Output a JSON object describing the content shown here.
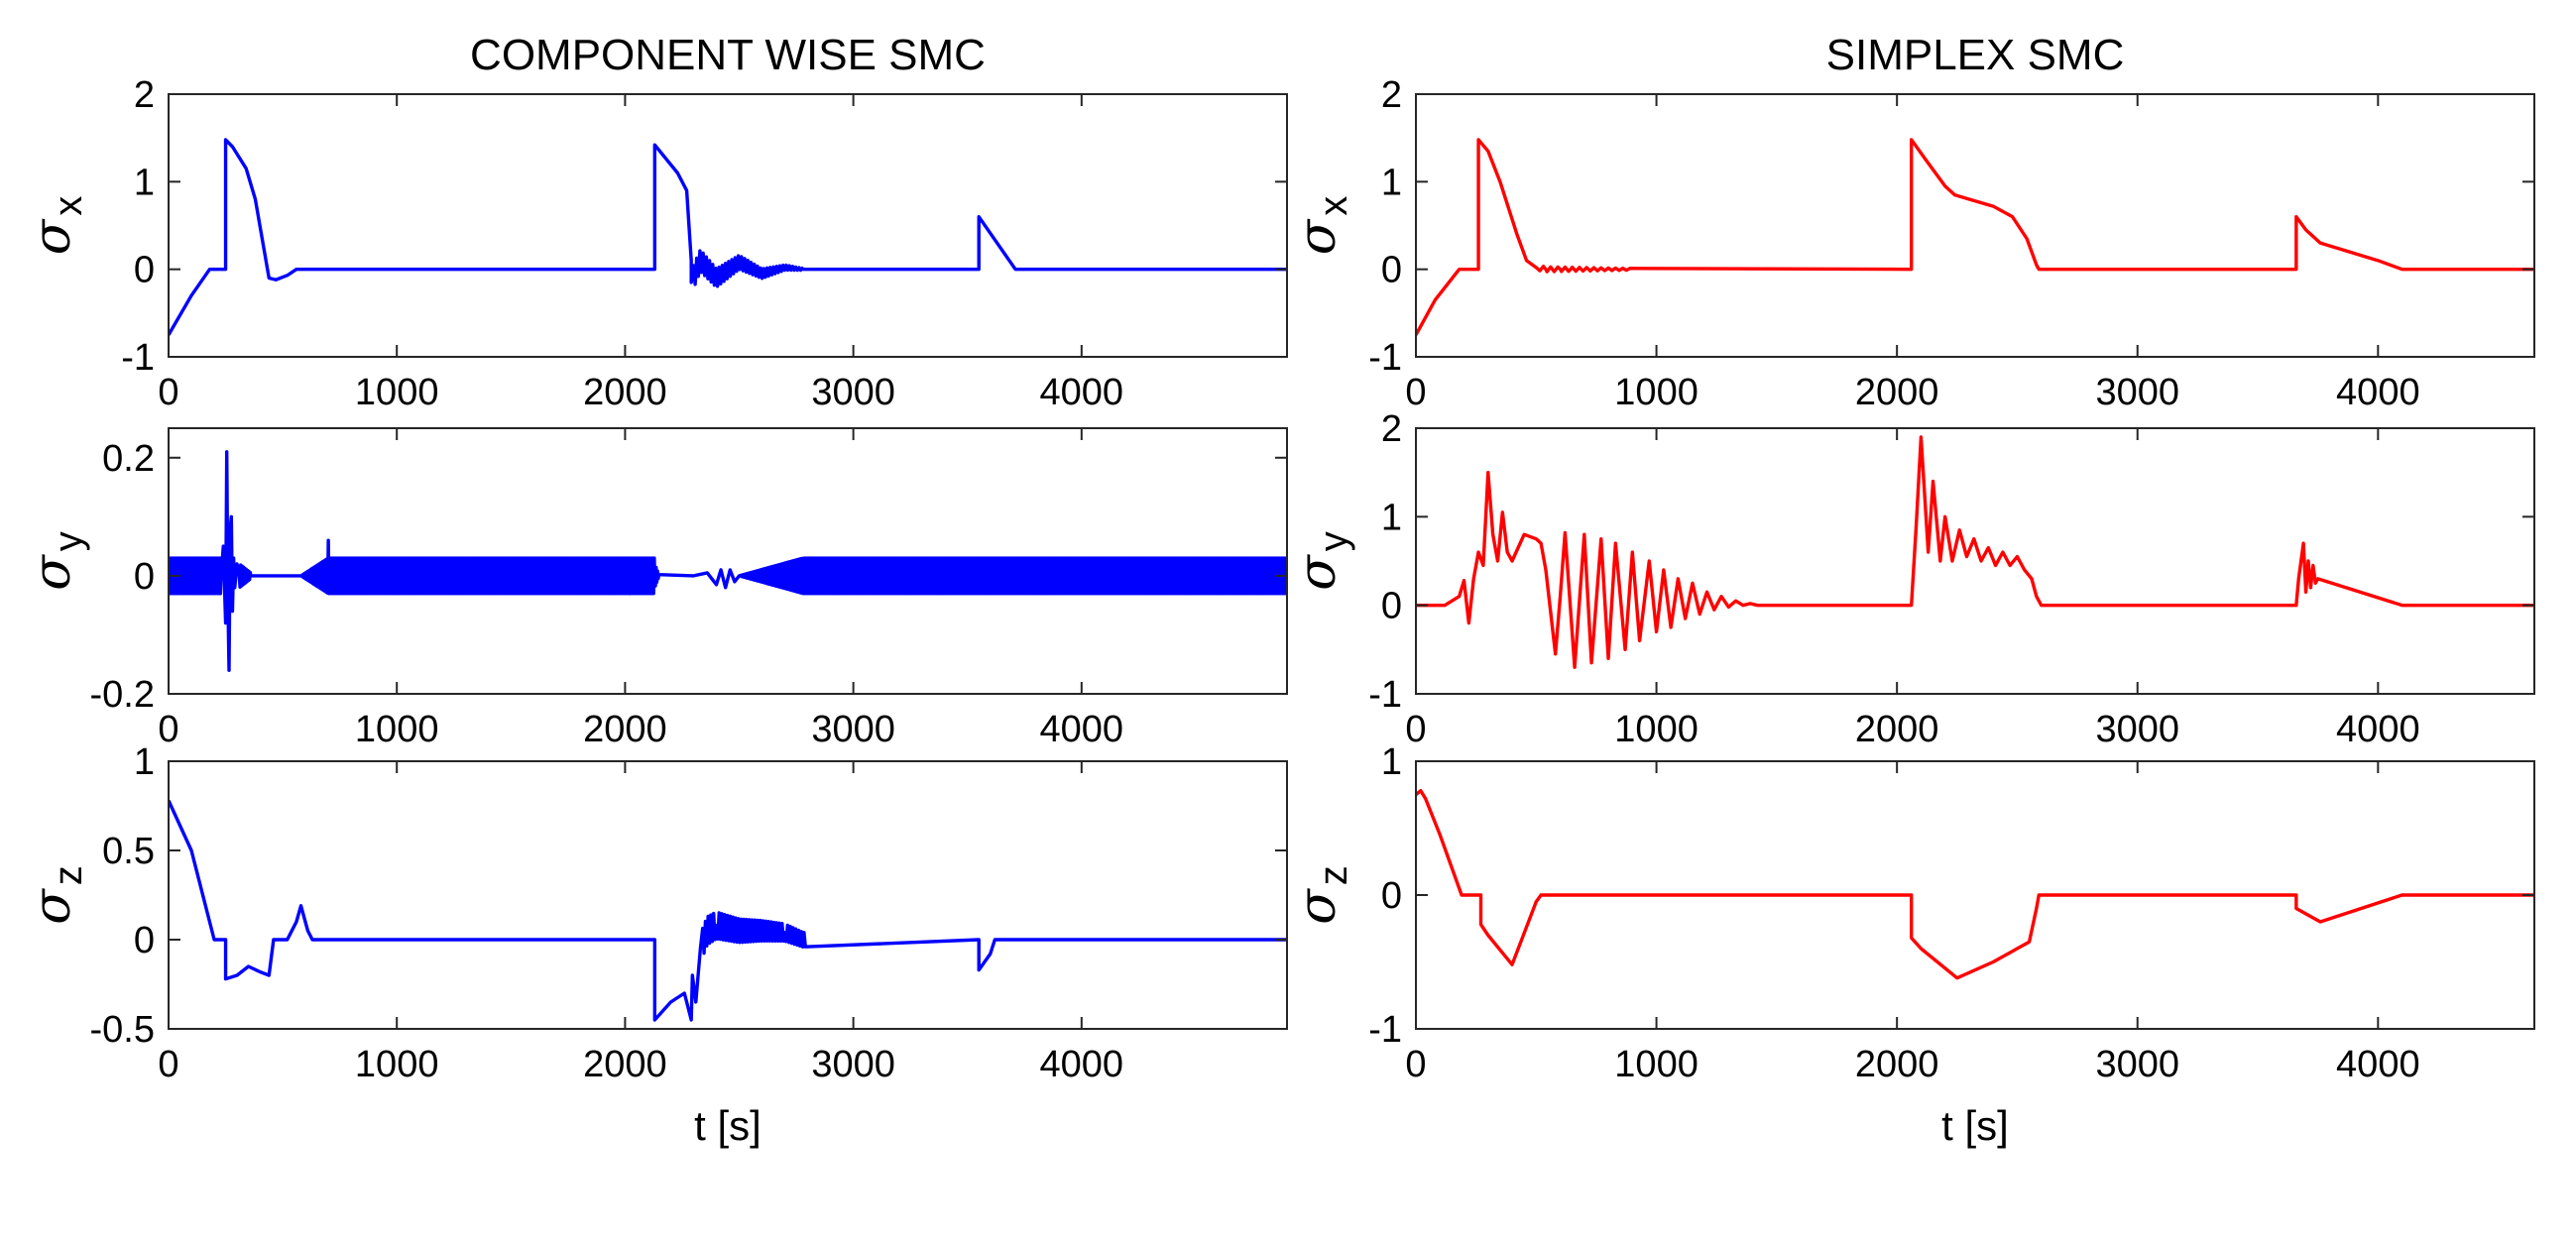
{
  "chart_data": [
    {
      "id": "cw-x",
      "type": "line",
      "column": "left",
      "title": "COMPONENT WISE SMC",
      "ylabel": {
        "symbol": "σ",
        "sub": "x"
      },
      "xlabel": "",
      "xlim": [
        0,
        4900
      ],
      "ylim": [
        -1,
        2
      ],
      "xticks": [
        0,
        1000,
        2000,
        3000,
        4000
      ],
      "yticks": [
        -1,
        0,
        1,
        2
      ],
      "color": "#0000ff",
      "series": [
        {
          "x": [
            0,
            100,
            180,
            250,
            250,
            280,
            340,
            380,
            420,
            440,
            470,
            520,
            560,
            580,
            2130,
            2130,
            2230,
            2270,
            2290,
            2290,
            2330,
            2400,
            2500,
            2600,
            2700,
            2780,
            3550,
            3550,
            3710,
            4900
          ],
          "y": [
            -0.75,
            -0.3,
            0,
            0,
            1.48,
            1.4,
            1.15,
            0.8,
            0.2,
            -0.1,
            -0.12,
            -0.07,
            0,
            0,
            0,
            1.42,
            1.1,
            0.9,
            0.1,
            -0.15,
            0.1,
            -0.1,
            0.08,
            -0.05,
            0.02,
            0,
            0,
            0.6,
            0,
            0
          ]
        }
      ],
      "noise": [
        {
          "x0": 2300,
          "x1": 2780,
          "amp0": 0.13,
          "amp1": 0.01,
          "period": 14
        }
      ]
    },
    {
      "id": "sx-x",
      "type": "line",
      "column": "right",
      "title": "SIMPLEX SMC",
      "ylabel": {
        "symbol": "σ",
        "sub": "x"
      },
      "xlabel": "",
      "xlim": [
        0,
        4650
      ],
      "ylim": [
        -1,
        2
      ],
      "xticks": [
        0,
        1000,
        2000,
        3000,
        4000
      ],
      "yticks": [
        -1,
        0,
        1,
        2
      ],
      "color": "#ff0000",
      "series": [
        {
          "x": [
            0,
            80,
            180,
            260,
            260,
            300,
            350,
            420,
            460,
            500,
            540,
            600,
            2060,
            2060,
            2120,
            2200,
            2240,
            2300,
            2400,
            2480,
            2540,
            2580,
            2590,
            2650,
            2800,
            3660,
            3660,
            3700,
            3760,
            4000,
            4100,
            4650
          ],
          "y": [
            -0.75,
            -0.35,
            0,
            0,
            1.48,
            1.35,
            1.0,
            0.4,
            0.1,
            0.02,
            0,
            0,
            0,
            1.48,
            1.25,
            0.95,
            0.85,
            0.8,
            0.72,
            0.6,
            0.35,
            0.05,
            0,
            0,
            0,
            0,
            0.6,
            0.45,
            0.3,
            0.1,
            0,
            0
          ]
        }
      ],
      "noise": [
        {
          "x0": 500,
          "x1": 900,
          "amp0": 0.03,
          "amp1": 0.01,
          "period": 30
        }
      ]
    },
    {
      "id": "cw-y",
      "type": "line",
      "column": "left",
      "title": "",
      "ylabel": {
        "symbol": "σ",
        "sub": "y"
      },
      "xlabel": "",
      "xlim": [
        0,
        4900
      ],
      "ylim": [
        -0.2,
        0.25
      ],
      "xticks": [
        0,
        1000,
        2000,
        3000,
        4000
      ],
      "yticks": [
        -0.2,
        0,
        0.2
      ],
      "color": "#0000ff",
      "series": [
        {
          "x": [
            0,
            230,
            240,
            250,
            255,
            260,
            265,
            270,
            275,
            280,
            285,
            290,
            300,
            310,
            330,
            360,
            580,
            2130,
            2300,
            2360,
            2400,
            2420,
            2440,
            2460,
            2480,
            2500,
            4900
          ],
          "y": [
            0,
            0,
            0.05,
            -0.08,
            0.21,
            -0.04,
            -0.16,
            0.08,
            0.1,
            -0.06,
            0.03,
            -0.02,
            0.02,
            0,
            0,
            0,
            0,
            0,
            0,
            0.005,
            -0.015,
            0.01,
            -0.02,
            0.01,
            -0.01,
            0,
            0
          ]
        }
      ],
      "noise": [
        {
          "x0": 0,
          "x1": 230,
          "amp0": 0.03,
          "amp1": 0.03,
          "period": 5
        },
        {
          "x0": 310,
          "x1": 360,
          "amp0": 0.02,
          "amp1": 0.005,
          "period": 6
        },
        {
          "x0": 580,
          "x1": 700,
          "amp0": 0.0,
          "amp1": 0.03,
          "period": 6
        },
        {
          "x0": 700,
          "x1": 2130,
          "amp0": 0.03,
          "amp1": 0.03,
          "period": 6
        },
        {
          "x0": 2130,
          "x1": 2150,
          "amp0": 0.02,
          "amp1": 0.0,
          "period": 6
        },
        {
          "x0": 2500,
          "x1": 2780,
          "amp0": 0.0,
          "amp1": 0.03,
          "period": 6
        },
        {
          "x0": 2780,
          "x1": 4900,
          "amp0": 0.03,
          "amp1": 0.03,
          "period": 6
        }
      ]
    },
    {
      "id": "sx-y",
      "type": "line",
      "column": "right",
      "title": "",
      "ylabel": {
        "symbol": "σ",
        "sub": "y"
      },
      "xlabel": "",
      "xlim": [
        0,
        4650
      ],
      "ylim": [
        -1,
        2
      ],
      "xticks": [
        0,
        1000,
        2000,
        3000,
        4000
      ],
      "yticks": [
        -1,
        0,
        1,
        2
      ],
      "color": "#ff0000",
      "series": [
        {
          "x": [
            0,
            120,
            180,
            200,
            220,
            240,
            260,
            280,
            300,
            320,
            340,
            360,
            380,
            400,
            450,
            500,
            520,
            540,
            580,
            600,
            620,
            660,
            700,
            730,
            770,
            800,
            830,
            870,
            900,
            930,
            970,
            1000,
            1030,
            1060,
            1090,
            1120,
            1150,
            1180,
            1210,
            1240,
            1270,
            1300,
            1330,
            1360,
            1390,
            1420,
            2060,
            2080,
            2100,
            2130,
            2150,
            2180,
            2200,
            2230,
            2260,
            2290,
            2320,
            2350,
            2380,
            2410,
            2440,
            2470,
            2500,
            2530,
            2560,
            2580,
            2600,
            3660,
            3670,
            3690,
            3700,
            3710,
            3720,
            3730,
            3740,
            3750,
            4100,
            4650
          ],
          "y": [
            0,
            0,
            0.1,
            0.28,
            -0.2,
            0.3,
            0.6,
            0.45,
            1.5,
            0.8,
            0.5,
            1.05,
            0.6,
            0.5,
            0.8,
            0.75,
            0.7,
            0.4,
            -0.55,
            0.1,
            0.82,
            -0.7,
            0.8,
            -0.65,
            0.75,
            -0.6,
            0.7,
            -0.5,
            0.6,
            -0.4,
            0.5,
            -0.3,
            0.4,
            -0.25,
            0.3,
            -0.15,
            0.25,
            -0.1,
            0.15,
            -0.05,
            0.1,
            -0.02,
            0.05,
            0,
            0.02,
            0,
            0,
            0.9,
            1.9,
            0.6,
            1.4,
            0.5,
            1.0,
            0.5,
            0.85,
            0.55,
            0.75,
            0.5,
            0.65,
            0.45,
            0.6,
            0.45,
            0.55,
            0.4,
            0.3,
            0.1,
            0,
            0,
            0.3,
            0.7,
            0.15,
            0.5,
            0.2,
            0.45,
            0.25,
            0.3,
            0,
            0
          ]
        }
      ],
      "noise": []
    },
    {
      "id": "cw-z",
      "type": "line",
      "column": "left",
      "title": "",
      "ylabel": {
        "symbol": "σ",
        "sub": "z"
      },
      "xlabel": "t [s]",
      "xlim": [
        0,
        4900
      ],
      "ylim": [
        -0.5,
        1
      ],
      "xticks": [
        0,
        1000,
        2000,
        3000,
        4000
      ],
      "yticks": [
        -0.5,
        0,
        0.5,
        1
      ],
      "color": "#0000ff",
      "series": [
        {
          "x": [
            0,
            100,
            200,
            250,
            250,
            300,
            350,
            400,
            440,
            460,
            490,
            520,
            560,
            580,
            610,
            630,
            2130,
            2130,
            2200,
            2260,
            2290,
            2295,
            2310,
            2330,
            2360,
            2400,
            2500,
            2600,
            2700,
            2780,
            3550,
            3550,
            3600,
            3620,
            4900
          ],
          "y": [
            0.78,
            0.5,
            0,
            0,
            -0.22,
            -0.2,
            -0.15,
            -0.18,
            -0.2,
            0,
            0,
            0,
            0.1,
            0.19,
            0.05,
            0,
            0,
            -0.45,
            -0.35,
            -0.3,
            -0.45,
            -0.2,
            -0.35,
            -0.05,
            0.05,
            0.08,
            0.05,
            0.05,
            0.04,
            0,
            0,
            -0.17,
            -0.08,
            0,
            0
          ]
        }
      ],
      "noise": [
        {
          "x0": 2340,
          "x1": 2790,
          "amp0": 0.08,
          "amp1": 0.04,
          "period": 12
        }
      ]
    },
    {
      "id": "sx-z",
      "type": "line",
      "column": "right",
      "title": "",
      "ylabel": {
        "symbol": "σ",
        "sub": "z"
      },
      "xlabel": "t [s]",
      "xlim": [
        0,
        4650
      ],
      "ylim": [
        -1,
        1
      ],
      "xticks": [
        0,
        1000,
        2000,
        3000,
        4000
      ],
      "yticks": [
        -1,
        0,
        1
      ],
      "color": "#ff0000",
      "series": [
        {
          "x": [
            0,
            20,
            40,
            100,
            190,
            270,
            270,
            300,
            400,
            500,
            520,
            2060,
            2060,
            2100,
            2250,
            2400,
            2550,
            2580,
            2590,
            2800,
            3660,
            3660,
            3760,
            4100,
            4650
          ],
          "y": [
            0.75,
            0.78,
            0.72,
            0.45,
            0,
            0,
            -0.22,
            -0.3,
            -0.52,
            -0.05,
            0,
            0,
            -0.32,
            -0.4,
            -0.62,
            -0.5,
            -0.35,
            -0.1,
            0,
            0,
            0,
            -0.1,
            -0.2,
            0,
            0
          ]
        }
      ],
      "noise": []
    }
  ]
}
